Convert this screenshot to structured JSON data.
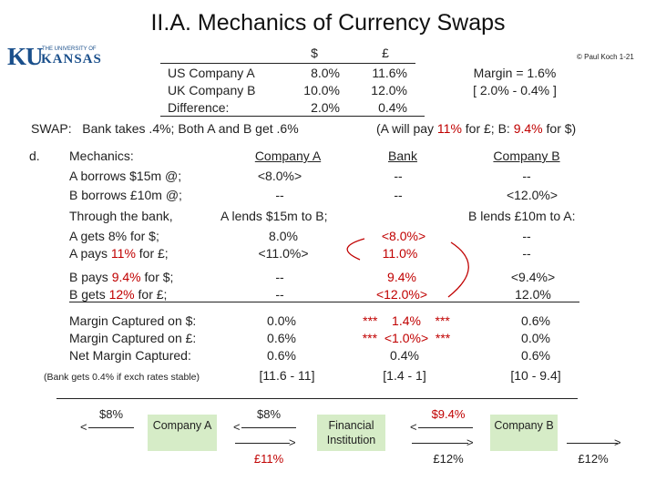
{
  "title": "II.A. Mechanics of Currency Swaps",
  "logo": {
    "mark": "KU",
    "university": "THE UNIVERSITY OF",
    "name": "KANSAS"
  },
  "footer_credit": "© Paul Koch 1-21",
  "rates": {
    "head_usd": "$",
    "head_gbp": "£",
    "rows": [
      {
        "label": "US Company A",
        "usd": "8.0%",
        "gbp": "11.6%"
      },
      {
        "label": "UK Company B",
        "usd": "10.0%",
        "gbp": "12.0%"
      },
      {
        "label": "Difference:",
        "usd": "2.0%",
        "gbp": "0.4%"
      }
    ],
    "margin_label": "Margin = 1.6%",
    "margin_calc": "[ 2.0% - 0.4% ]"
  },
  "swap": {
    "prefix": "SWAP:",
    "text": "Bank takes .4%; Both A and B get .6%",
    "note_open": "(A will pay",
    "note_a": "11%",
    "note_mid": "for £; B:",
    "note_b": "9.4%",
    "note_close": "for $)"
  },
  "mechanics": {
    "marker": "d.",
    "heading": "Mechanics:",
    "col_a": "Company A",
    "col_bank": "Bank",
    "col_b": "Company B",
    "a_borrows": "A borrows $15m @;",
    "a_borrows_a": "<8.0%>",
    "a_borrows_bank": "--",
    "a_borrows_b": "--",
    "b_borrows": "B borrows £10m @;",
    "b_borrows_a": "--",
    "b_borrows_bank": "--",
    "b_borrows_b": "<12.0%>",
    "through": "Through the bank,",
    "a_lends": "A lends $15m to B;",
    "b_lends": "B lends £10m to A:",
    "a_gets_pre": "A gets",
    "a_gets_rate": "8%",
    "a_gets_post": "for $;",
    "a_gets_a": "8.0%",
    "a_gets_bank": "<8.0%>",
    "a_gets_b": "--",
    "a_pays_pre": "A pays",
    "a_pays_rate": "11%",
    "a_pays_post": "for £;",
    "a_pays_a": "<11.0%>",
    "a_pays_bank": "11.0%",
    "a_pays_b": "--",
    "b_pays_pre": "B pays",
    "b_pays_rate": "9.4%",
    "b_pays_post": "for $;",
    "b_pays_a": "--",
    "b_pays_bank": "9.4%",
    "b_pays_b": "<9.4%>",
    "b_gets_pre": "B gets",
    "b_gets_rate": "12%",
    "b_gets_post": "for £;",
    "b_gets_a": "--",
    "b_gets_bank": "<12.0%>",
    "b_gets_b": "12.0%"
  },
  "captured": {
    "usd_label": "Margin Captured on $:",
    "usd_a": "0.0%",
    "usd_bank_stars_l": "***",
    "usd_bank": "1.4%",
    "usd_bank_stars_r": "***",
    "usd_b": "0.6%",
    "gbp_label": "Margin Captured on £:",
    "gbp_a": "0.6%",
    "gbp_bank_stars_l": "***",
    "gbp_bank": "<1.0%>",
    "gbp_bank_stars_r": "***",
    "gbp_b": "0.0%",
    "net_label": "Net Margin Captured:",
    "net_a": "0.6%",
    "net_bank": "0.4%",
    "net_b": "0.6%",
    "note": "(Bank gets 0.4% if exch rates stable)",
    "calc_a": "[11.6 - 11]",
    "calc_bank": "[1.4 - 1]",
    "calc_b": "[10 - 9.4]"
  },
  "flow": {
    "left_usd": "$8%",
    "company_a": "Company A",
    "mid_usd": "$8%",
    "a_gbp": "£11%",
    "institution": "Financial Institution",
    "right_usd": "$9.4%",
    "mid_gbp": "£12%",
    "company_b": "Company B",
    "right_gbp": "£12%"
  },
  "colors": {
    "highlight": "#c00000",
    "box_fill": "#d6ecc7",
    "logo_blue": "#1a4f8b"
  }
}
